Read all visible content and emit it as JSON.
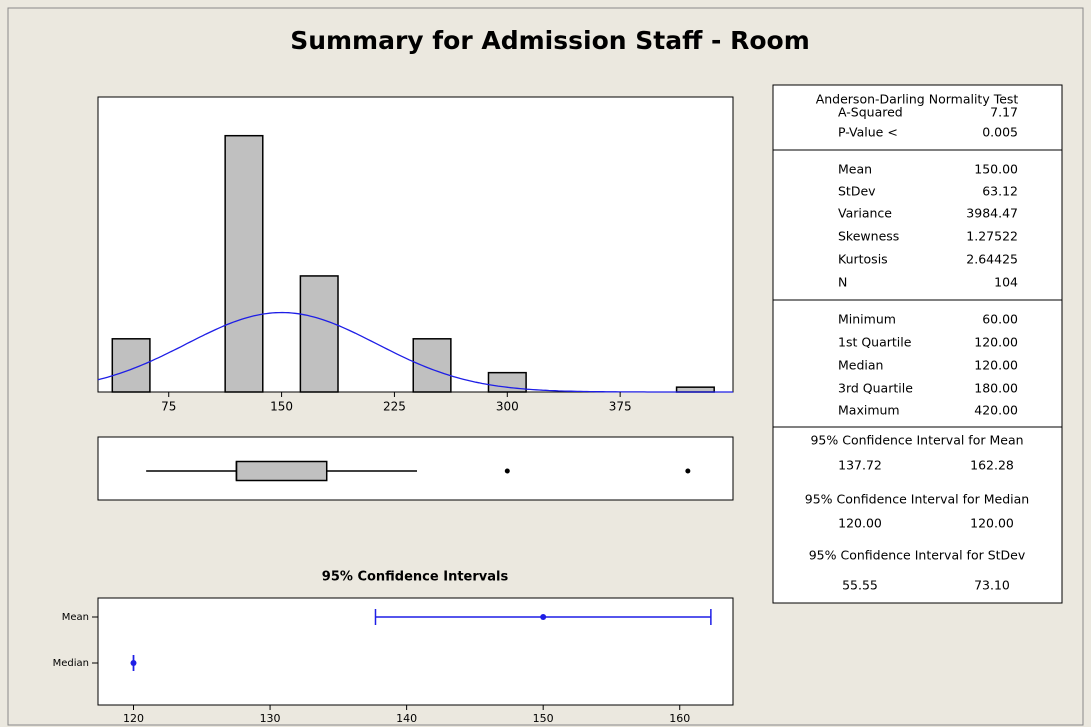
{
  "title": "Summary for Admission Staff - Room",
  "chart_data": [
    {
      "type": "histogram",
      "bins": [
        37.5,
        62.5,
        87.5,
        112.5,
        137.5,
        162.5,
        187.5,
        212.5,
        237.5,
        262.5,
        287.5,
        312.5,
        337.5,
        362.5,
        387.5,
        412.5,
        437.5
      ],
      "counts": [
        11,
        0,
        0,
        53,
        0,
        24,
        0,
        0,
        11,
        0,
        4,
        0,
        0,
        0,
        0,
        1
      ],
      "color": "#c0c0c0",
      "curve_color": "#1e1ee6",
      "xlim": [
        28,
        450
      ],
      "ylim": [
        0,
        61
      ],
      "xticks": [
        75,
        150,
        225,
        300,
        375
      ]
    },
    {
      "type": "boxplot",
      "whisker_low": 60,
      "q1": 120,
      "median": 120,
      "q3": 180,
      "whisker_high": 240,
      "outliers": [
        300,
        420
      ],
      "color": "#c0c0c0",
      "xlim": [
        28,
        450
      ]
    },
    {
      "type": "interval",
      "title": "95% Confidence Intervals",
      "categories": [
        "Mean",
        "Median"
      ],
      "values": [
        150,
        120
      ],
      "lower": [
        137.72,
        120
      ],
      "upper": [
        162.28,
        120
      ],
      "color": "#1e1ee6",
      "xlim": [
        117.4,
        163.9
      ],
      "xticks": [
        120,
        130,
        140,
        150,
        160
      ]
    }
  ],
  "stats": {
    "normality": {
      "title": "Anderson-Darling Normality Test",
      "rows": [
        [
          "A-Squared",
          "7.17"
        ],
        [
          "P-Value <",
          "0.005"
        ]
      ]
    },
    "moments": {
      "rows": [
        [
          "Mean",
          "150.00"
        ],
        [
          "StDev",
          "63.12"
        ],
        [
          "Variance",
          "3984.47"
        ],
        [
          "Skewness",
          "1.27522"
        ],
        [
          "Kurtosis",
          "2.64425"
        ],
        [
          "N",
          "104"
        ]
      ]
    },
    "quantiles": {
      "rows": [
        [
          "Minimum",
          "60.00"
        ],
        [
          "1st Quartile",
          "120.00"
        ],
        [
          "Median",
          "120.00"
        ],
        [
          "3rd Quartile",
          "180.00"
        ],
        [
          "Maximum",
          "420.00"
        ]
      ]
    },
    "intervals": [
      {
        "title": "95% Confidence Interval for Mean",
        "lower": "137.72",
        "upper": "162.28"
      },
      {
        "title": "95% Confidence Interval for Median",
        "lower": "120.00",
        "upper": "120.00"
      },
      {
        "title": "95% Confidence Interval for StDev",
        "lower": "55.55",
        "upper": "73.10"
      }
    ]
  }
}
